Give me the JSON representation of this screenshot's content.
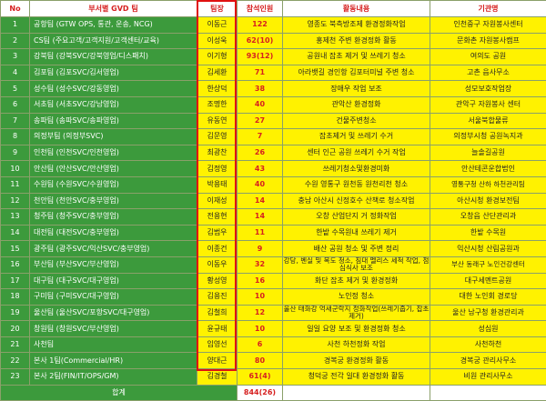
{
  "headers": {
    "no": "No",
    "dept": "부서별 GVD 팀",
    "leader": "팀장",
    "count": "참석인원",
    "activity": "활동내용",
    "org": "기관명"
  },
  "rows": [
    {
      "no": "1",
      "dept": "공항팀 (GTW OPS, 통관, 운송, NCG)",
      "leader": "이동근",
      "count": "122",
      "activity": "영종도 북측방조제 환경정화작업",
      "org": "인천중구 자원봉사센터"
    },
    {
      "no": "2",
      "dept": "CS팀 (주요고객/고객지원/고객센터/교육)",
      "leader": "이성욱",
      "count": "62(10)",
      "activity": "홍제천 주변 환경정화 활동",
      "org": "문화촌 자원봉사캠프"
    },
    {
      "no": "3",
      "dept": "강북팀 (강북SVC/강북영업/디스패치)",
      "leader": "이기형",
      "count": "93(12)",
      "activity": "공원내 잡초 제거 및 쓰레기 청소",
      "org": "여의도 공원"
    },
    {
      "no": "4",
      "dept": "김포팀 (김포SVC/김서영업)",
      "leader": "김세환",
      "count": "71",
      "activity": "아라뱃길 경인항 김포터미널 주변 청소",
      "org": "고촌 읍사무소"
    },
    {
      "no": "5",
      "dept": "성수팀 (성수SVC/강동영업)",
      "leader": "한상덕",
      "count": "38",
      "activity": "장애우 작업 보조",
      "org": "성모보호작업장"
    },
    {
      "no": "6",
      "dept": "서초팀 (서초SVC/강남영업)",
      "leader": "조명한",
      "count": "40",
      "activity": "관악산 환경정화",
      "org": "관악구 자원봉사 센터"
    },
    {
      "no": "7",
      "dept": "송파팀 (송파SVC/송파영업)",
      "leader": "유동연",
      "count": "27",
      "activity": "건물주변청소",
      "org": "서울북합물류"
    },
    {
      "no": "8",
      "dept": "의정부팀 (의정부SVC)",
      "leader": "김문영",
      "count": "7",
      "activity": "잡초제거 및 쓰레기 수거",
      "org": "의정부시청 공원녹지과"
    },
    {
      "no": "9",
      "dept": "인천팀 (인천SVC/인천영업)",
      "leader": "최광찬",
      "count": "26",
      "activity": "센터 인근 공원 쓰레기 수거 작업",
      "org": "늘솔길공원"
    },
    {
      "no": "10",
      "dept": "안산팀 (안산SVC/안산영업)",
      "leader": "김정영",
      "count": "43",
      "activity": "쓰레기청소및환경미화",
      "org": "안산테콘운합법인"
    },
    {
      "no": "11",
      "dept": "수원팀 (수원SVC/수원영업)",
      "leader": "박용태",
      "count": "40",
      "activity": "수원 영통구 원천동 원천리천 청소",
      "org": "영통구청 산하 하천관리팀"
    },
    {
      "no": "12",
      "dept": "천안팀 (천안SVC/충부영업)",
      "leader": "이재성",
      "count": "14",
      "activity": "충남 아산시 신정호수 산책로 청소작업",
      "org": "아산시청 환경보전팀"
    },
    {
      "no": "13",
      "dept": "청주팀 (청주SVC/충부영업)",
      "leader": "전용현",
      "count": "14",
      "activity": "오창 산업단지 거 정화작업",
      "org": "오창읍 산단관리과"
    },
    {
      "no": "14",
      "dept": "대전팀 (대전SVC/충부영업)",
      "leader": "김범우",
      "count": "11",
      "activity": "한밭 수목원내 쓰레기 제거",
      "org": "한밭 수목원"
    },
    {
      "no": "15",
      "dept": "광주팀 (광주SVC/익산SVC/충부영업)",
      "leader": "이종건",
      "count": "9",
      "activity": "배산 공원 청소 및 주변 정리",
      "org": "익산시청 산림공원과"
    },
    {
      "no": "16",
      "dept": "부산팀 (부산SVC/부산영업)",
      "leader": "이동우",
      "count": "32",
      "activity": "강당, 벤실 및 복도 청소, 침대 멜리스 세척 작업, 점심식사 보조",
      "org": "부산 동래구 노인건강센터"
    },
    {
      "no": "17",
      "dept": "대구팀 (대구SVC/대구영업)",
      "leader": "황성영",
      "count": "16",
      "activity": "화단 잡초 제거 및 환경정화",
      "org": "대구세멘트공원"
    },
    {
      "no": "18",
      "dept": "구미팀 (구미SVC/대구영업)",
      "leader": "김용진",
      "count": "10",
      "activity": "노인정 청소",
      "org": "대한 노인회 경로당"
    },
    {
      "no": "19",
      "dept": "울산팀 (울산SVC/포항SVC/대구영업)",
      "leader": "김철희",
      "count": "12",
      "activity": "울산 태화강 억새군락지 정화작업(쓰레기줍기, 잡초제거)",
      "org": "울산 남구청 환경관리과"
    },
    {
      "no": "20",
      "dept": "창원팀 (창원SVC/부산영업)",
      "leader": "윤규태",
      "count": "10",
      "activity": "일일 요양 보조 및 환경정화 청소",
      "org": "성심원"
    },
    {
      "no": "21",
      "dept": "사천팀",
      "leader": "임영선",
      "count": "6",
      "activity": "사천 하천정화 작업",
      "org": "사천하천"
    },
    {
      "no": "22",
      "dept": "본사 1팀(Commercial/HR)",
      "leader": "양대근",
      "count": "80",
      "activity": "경복궁 환경정화 활동",
      "org": "경복궁 관리사무소"
    },
    {
      "no": "23",
      "dept": "본사 2팀(FIN/IT/OPS/GM)",
      "leader": "김경철",
      "count": "61(4)",
      "activity": "청덕궁 전각 일대 환경정화 활동",
      "org": "비원 관리사무소"
    }
  ],
  "total": {
    "label": "합계",
    "count": "844(26)"
  },
  "colors": {
    "green": "#3c9a3c",
    "yellow": "#fff200",
    "red": "#d62020"
  }
}
